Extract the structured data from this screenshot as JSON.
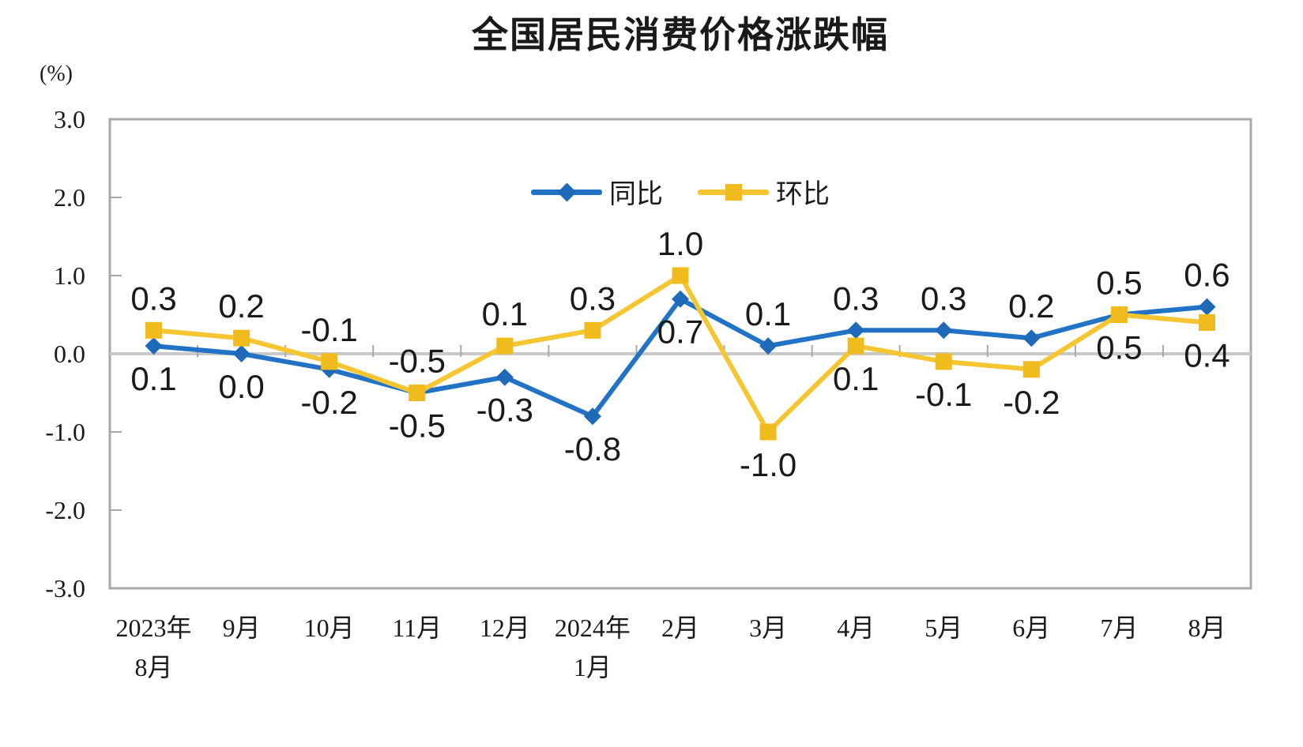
{
  "title": "全国居民消费价格涨跌幅",
  "legend": {
    "series1_label": "同比",
    "series2_label": "环比"
  },
  "chart_data": {
    "type": "line",
    "title": "全国居民消费价格涨跌幅",
    "ylabel": "(%)",
    "ylim": [
      -3.0,
      3.0
    ],
    "y_tick_step": 1.0,
    "y_ticks": [
      "3.0",
      "2.0",
      "1.0",
      "0.0",
      "-1.0",
      "-2.0",
      "-3.0"
    ],
    "grid": "zero-axis-line-only",
    "legend_position": "top-center-inside",
    "categories": [
      [
        "2023年",
        "8月"
      ],
      [
        "9月"
      ],
      [
        "10月"
      ],
      [
        "11月"
      ],
      [
        "12月"
      ],
      [
        "2024年",
        "1月"
      ],
      [
        "2月"
      ],
      [
        "3月"
      ],
      [
        "4月"
      ],
      [
        "5月"
      ],
      [
        "6月"
      ],
      [
        "7月"
      ],
      [
        "8月"
      ]
    ],
    "series": [
      {
        "name": "同比",
        "marker": "diamond",
        "line_color": "#2273C5",
        "marker_color": "#1E69B8",
        "values": [
          0.1,
          0.0,
          -0.2,
          -0.5,
          -0.3,
          -0.8,
          0.7,
          0.1,
          0.3,
          0.3,
          0.2,
          0.5,
          0.6
        ],
        "labels": [
          "0.1",
          "0.0",
          "-0.2",
          "-0.5",
          "-0.3",
          "-0.8",
          "0.7",
          "0.1",
          "0.3",
          "0.3",
          "0.2",
          "0.5",
          "0.6"
        ],
        "label_side": [
          "below",
          "below",
          "below",
          "below",
          "below",
          "below",
          "below",
          "above",
          "above",
          "above",
          "above",
          "above",
          "above"
        ]
      },
      {
        "name": "环比",
        "marker": "square",
        "line_color": "#F5C532",
        "marker_color": "#F0BB1D",
        "values": [
          0.3,
          0.2,
          -0.1,
          -0.5,
          0.1,
          0.3,
          1.0,
          -1.0,
          0.1,
          -0.1,
          -0.2,
          0.5,
          0.4
        ],
        "labels": [
          "0.3",
          "0.2",
          "-0.1",
          "-0.5",
          "0.1",
          "0.3",
          "1.0",
          "-1.0",
          "0.1",
          "-0.1",
          "-0.2",
          "0.5",
          "0.4"
        ],
        "label_side": [
          "above",
          "above",
          "above",
          "above",
          "above",
          "above",
          "above",
          "below",
          "below",
          "below",
          "below",
          "below",
          "below"
        ]
      }
    ],
    "colors": {
      "plot_border": "#A8A8A8",
      "zero_line": "#C9C9C9",
      "tick": "#A8A8A8",
      "axis_text": "#1a1a1a",
      "data_label_text": "#1a1a1a",
      "background": "#FFFFFF"
    }
  }
}
